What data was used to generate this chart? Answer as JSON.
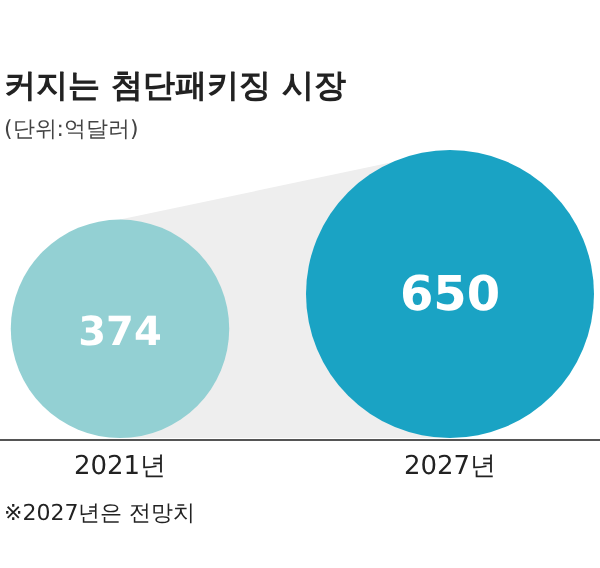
{
  "chart_data": {
    "type": "other",
    "title": "커지는 첨단패키징 시장",
    "subtitle": "(단위:억달러)",
    "categories": [
      "2021년",
      "2027년"
    ],
    "values": [
      374,
      650
    ],
    "colors": [
      "#93d0d3",
      "#1aa3c4"
    ],
    "data_labels": true,
    "annotations": [
      "※2027년은 전망치"
    ]
  }
}
